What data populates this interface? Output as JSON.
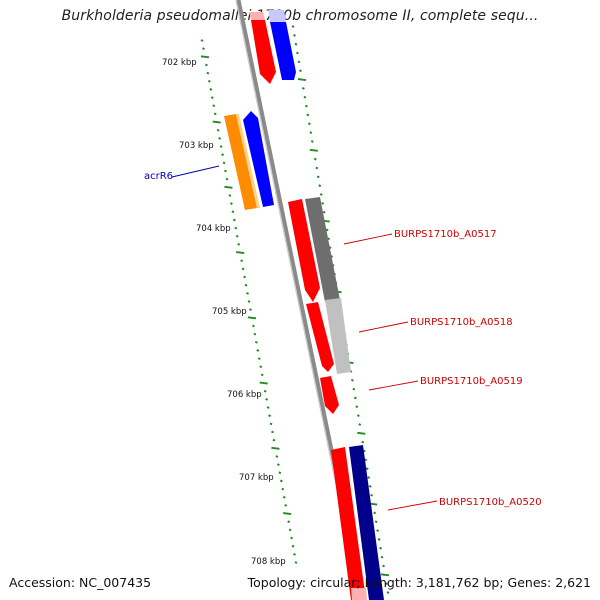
{
  "title": "Burkholderia pseudomallei 1710b chromosome II, complete sequ...",
  "footer": {
    "accession": "Accession: NC_007435",
    "topology": "Topology: circular; Length: 3,181,762 bp; Genes: 2,621"
  },
  "ruler": {
    "labels": [
      "702 kbp",
      "703 kbp",
      "704 kbp",
      "705 kbp",
      "706 kbp",
      "707 kbp",
      "708 kbp"
    ]
  },
  "gene_labels": [
    {
      "text": "acrR6",
      "color": "#0000bb"
    },
    {
      "text": "BURPS1710b_A0517",
      "color": "#cc0000"
    },
    {
      "text": "BURPS1710b_A0518",
      "color": "#cc0000"
    },
    {
      "text": "BURPS1710b_A0519",
      "color": "#cc0000"
    },
    {
      "text": "BURPS1710b_A0520",
      "color": "#cc0000"
    }
  ],
  "colors": {
    "cds_red": "#ff0000",
    "cds_blue": "#0000ff",
    "cds_orange": "#ff8c00",
    "cds_darkgrey": "#6e6e6e",
    "cds_lightgrey": "#c0c0c0",
    "cds_navy": "#00008b",
    "tick_green": "#228b22",
    "backbone": "#888888"
  }
}
